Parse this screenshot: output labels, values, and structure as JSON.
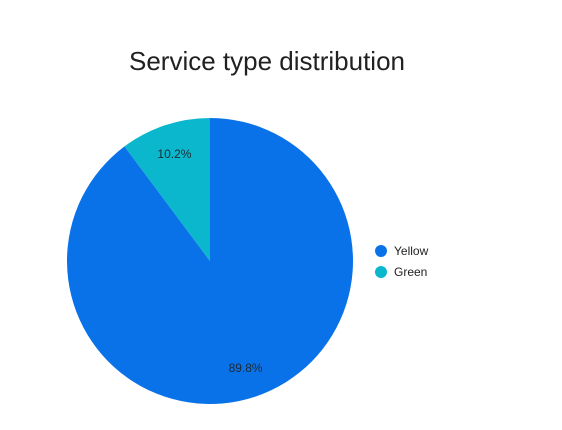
{
  "chart_data": {
    "type": "pie",
    "title": "Service type distribution",
    "legend_position": "right",
    "series": [
      {
        "name": "Yellow",
        "value": 89.8,
        "label": "89.8%",
        "color": "#0a72e8"
      },
      {
        "name": "Green",
        "value": 10.2,
        "label": "10.2%",
        "color": "#0bb7cc"
      }
    ]
  }
}
